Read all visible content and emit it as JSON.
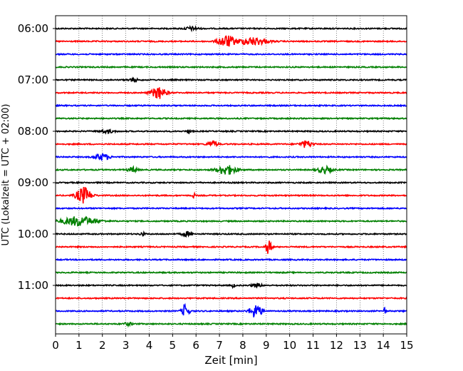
{
  "chart_data": {
    "type": "line",
    "subtype": "helicorder",
    "title": "",
    "xlabel": "Zeit  [min]",
    "ylabel": "UTC (Lokalzeit = UTC + 02:00)",
    "xlim": [
      0,
      15
    ],
    "x_ticks": [
      0,
      1,
      2,
      3,
      4,
      5,
      6,
      7,
      8,
      9,
      10,
      11,
      12,
      13,
      14,
      15
    ],
    "x_tick_labels": [
      "0",
      "1",
      "2",
      "3",
      "4",
      "5",
      "6",
      "7",
      "8",
      "9",
      "10",
      "11",
      "12",
      "13",
      "14",
      "15"
    ],
    "y_ticks": [
      "06:00",
      "07:00",
      "08:00",
      "09:00",
      "10:00",
      "11:00"
    ],
    "trace_interval_min": 15,
    "trace_start": "06:00",
    "trace_count": 24,
    "color_cycle": [
      "#000000",
      "#ff0000",
      "#0000ff",
      "#008000"
    ],
    "grid": "vertical dotted at each minute",
    "events": [
      {
        "trace": 0,
        "x": 5.8,
        "amp": 0.25,
        "width": 0.3
      },
      {
        "trace": 1,
        "x": 7.3,
        "amp": 0.9,
        "width": 0.35
      },
      {
        "trace": 1,
        "x": 8.4,
        "amp": 0.6,
        "width": 0.6
      },
      {
        "trace": 4,
        "x": 3.3,
        "amp": 0.25,
        "width": 0.2
      },
      {
        "trace": 5,
        "x": 4.4,
        "amp": 0.95,
        "width": 0.3
      },
      {
        "trace": 8,
        "x": 2.2,
        "amp": 0.25,
        "width": 0.3
      },
      {
        "trace": 8,
        "x": 5.7,
        "amp": 0.3,
        "width": 0.1
      },
      {
        "trace": 9,
        "x": 6.7,
        "amp": 0.5,
        "width": 0.2
      },
      {
        "trace": 9,
        "x": 10.7,
        "amp": 0.55,
        "width": 0.25
      },
      {
        "trace": 10,
        "x": 2.0,
        "amp": 0.5,
        "width": 0.3
      },
      {
        "trace": 11,
        "x": 3.3,
        "amp": 0.4,
        "width": 0.2
      },
      {
        "trace": 11,
        "x": 7.3,
        "amp": 0.75,
        "width": 0.4
      },
      {
        "trace": 11,
        "x": 11.5,
        "amp": 0.5,
        "width": 0.3
      },
      {
        "trace": 13,
        "x": 1.2,
        "amp": 1.3,
        "width": 0.3
      },
      {
        "trace": 13,
        "x": 5.9,
        "amp": 0.4,
        "width": 0.05
      },
      {
        "trace": 15,
        "x": 1.0,
        "amp": 0.75,
        "width": 0.7
      },
      {
        "trace": 16,
        "x": 3.7,
        "amp": 0.3,
        "width": 0.1
      },
      {
        "trace": 16,
        "x": 5.6,
        "amp": 0.35,
        "width": 0.2
      },
      {
        "trace": 17,
        "x": 9.1,
        "amp": 1.1,
        "width": 0.12
      },
      {
        "trace": 20,
        "x": 7.6,
        "amp": 0.45,
        "width": 0.05
      },
      {
        "trace": 20,
        "x": 8.6,
        "amp": 0.3,
        "width": 0.2
      },
      {
        "trace": 22,
        "x": 5.55,
        "amp": 1.05,
        "width": 0.15
      },
      {
        "trace": 22,
        "x": 8.55,
        "amp": 1.05,
        "width": 0.25
      },
      {
        "trace": 22,
        "x": 14.05,
        "amp": 0.6,
        "width": 0.05
      },
      {
        "trace": 23,
        "x": 3.1,
        "amp": 0.2,
        "width": 0.2
      }
    ]
  }
}
